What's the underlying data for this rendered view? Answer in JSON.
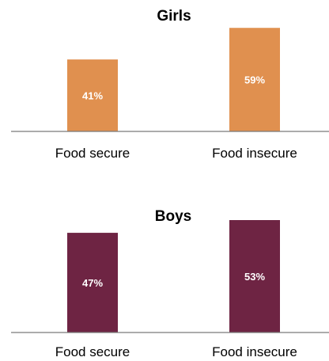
{
  "chart_data": [
    {
      "type": "bar",
      "title": "Girls",
      "categories": [
        "Food secure",
        "Food insecure"
      ],
      "values": [
        41,
        59
      ],
      "data_labels": [
        "41%",
        "59%"
      ],
      "unit": "%",
      "color": "#E0904F",
      "ylim": [
        0,
        60
      ],
      "grid": false,
      "legend": "none"
    },
    {
      "type": "bar",
      "title": "Boys",
      "categories": [
        "Food secure",
        "Food insecure"
      ],
      "values": [
        47,
        53
      ],
      "data_labels": [
        "47%",
        "53%"
      ],
      "unit": "%",
      "color": "#6E2443",
      "ylim": [
        0,
        53
      ],
      "grid": false,
      "legend": "none"
    }
  ]
}
